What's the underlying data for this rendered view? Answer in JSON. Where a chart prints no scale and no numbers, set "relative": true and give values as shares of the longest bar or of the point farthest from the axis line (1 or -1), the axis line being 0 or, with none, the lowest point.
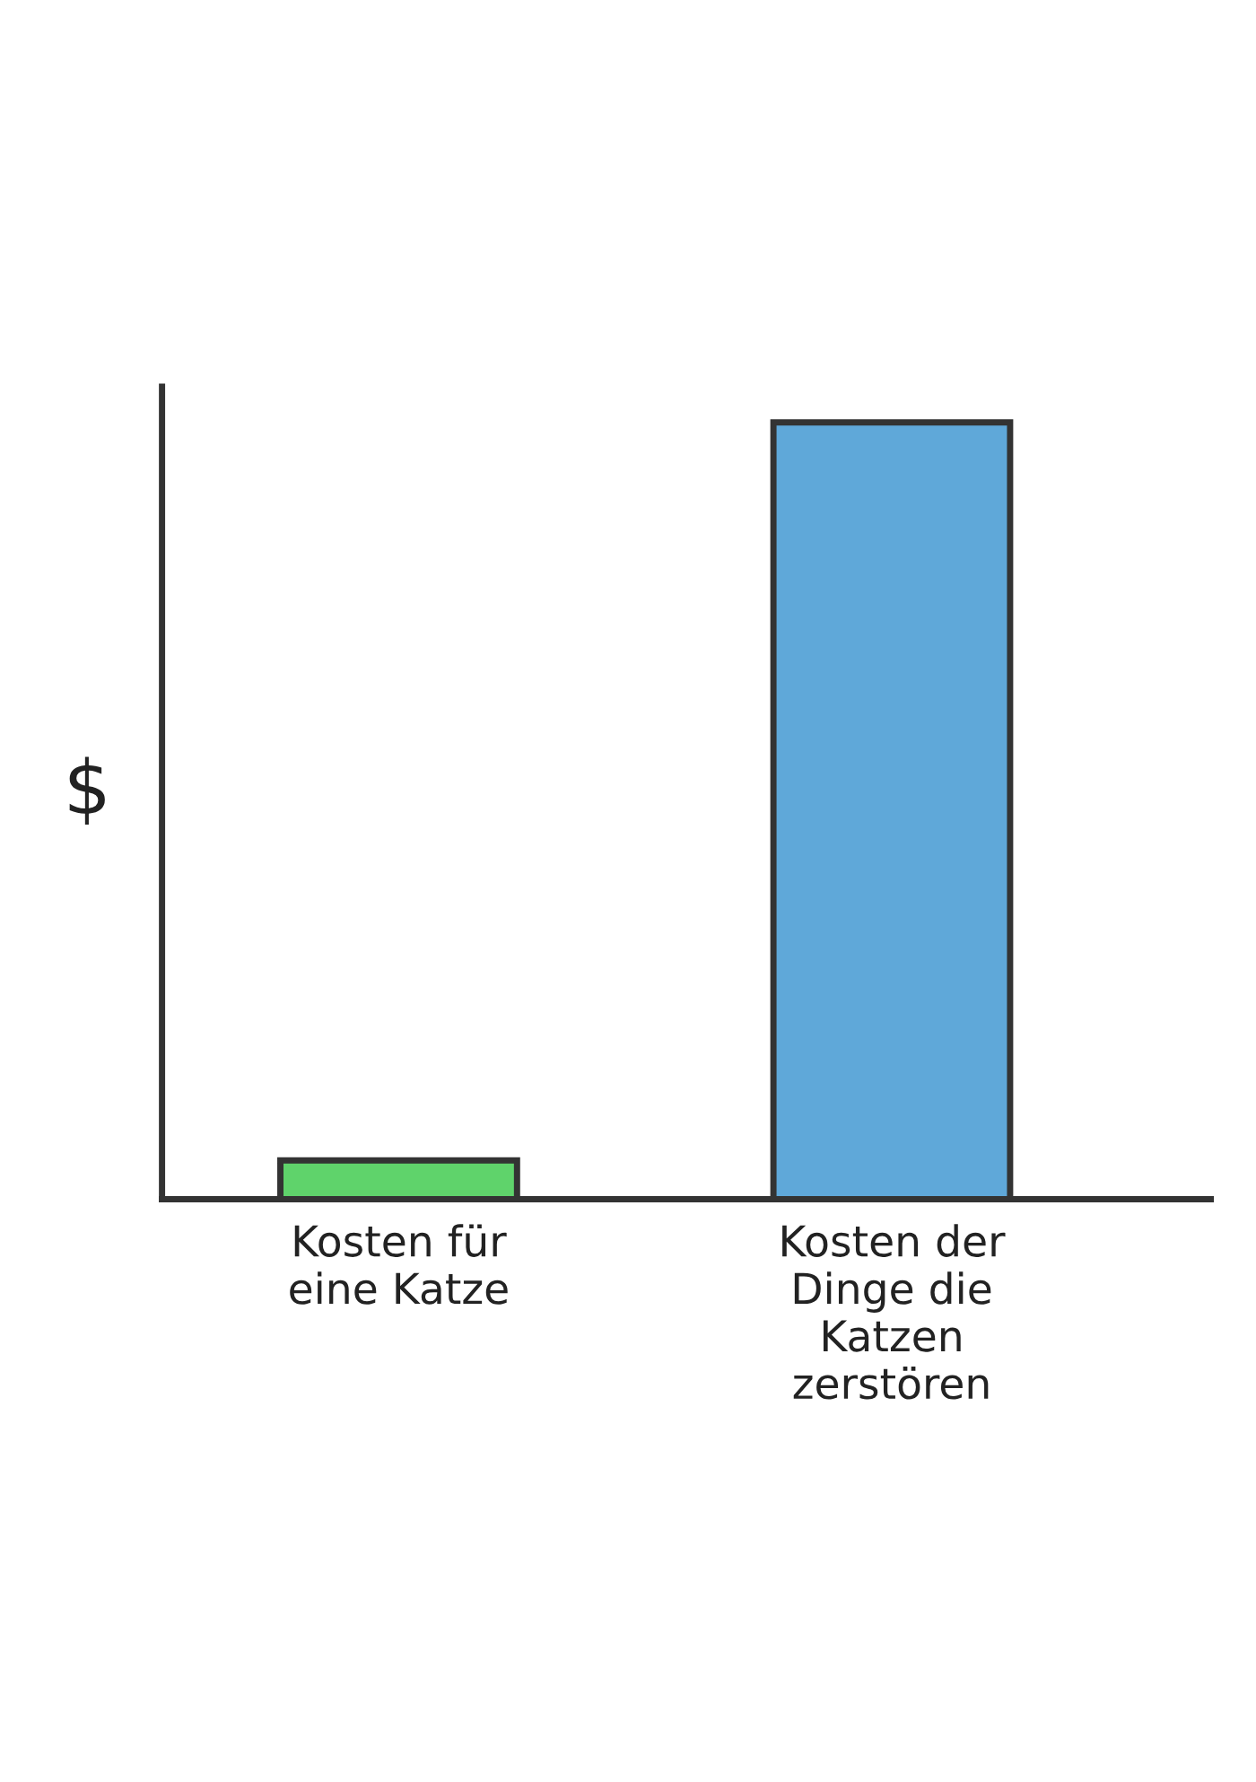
{
  "chart_data": {
    "type": "bar",
    "relative": true,
    "ylabel": "$",
    "categories": [
      "Kosten für\neine Katze",
      "Kosten der\nDinge die\nKatzen\nzerstören"
    ],
    "values": [
      0.05,
      1
    ],
    "colors": [
      "#5fd36b",
      "#5fa8d9"
    ],
    "grid": false,
    "legend": false
  }
}
